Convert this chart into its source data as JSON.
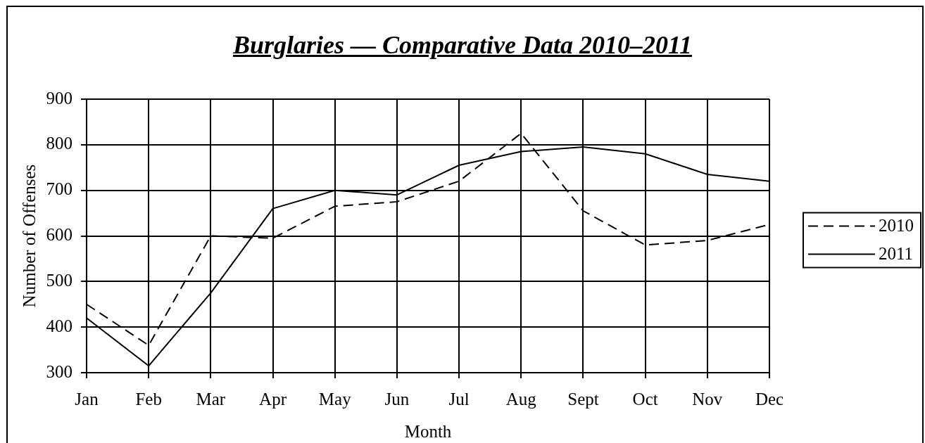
{
  "chart_data": {
    "type": "line",
    "title": "Burglaries — Comparative Data 2010–2011",
    "xlabel": "Month",
    "ylabel": "Number of Offenses",
    "categories": [
      "Jan",
      "Feb",
      "Mar",
      "Apr",
      "May",
      "Jun",
      "Jul",
      "Aug",
      "Sept",
      "Oct",
      "Nov",
      "Dec"
    ],
    "series": [
      {
        "name": "2010",
        "color": "#000000",
        "line_style": "dashed",
        "values": [
          450,
          360,
          600,
          595,
          665,
          675,
          720,
          825,
          655,
          580,
          590,
          625
        ]
      },
      {
        "name": "2011",
        "color": "#000000",
        "line_style": "solid",
        "values": [
          420,
          315,
          475,
          660,
          700,
          690,
          755,
          785,
          795,
          780,
          735,
          720
        ]
      }
    ],
    "ylim": [
      300,
      900
    ],
    "yticks": [
      300,
      400,
      500,
      600,
      700,
      800,
      900
    ],
    "grid": true,
    "legend": "right",
    "marker": "none"
  }
}
